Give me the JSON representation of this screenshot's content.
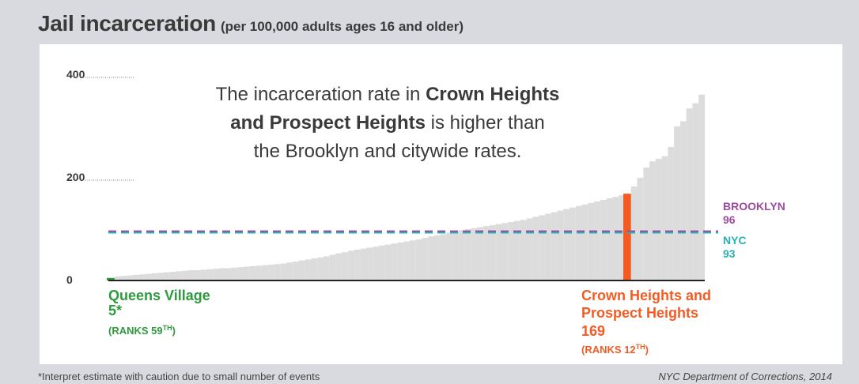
{
  "header": {
    "title": "Jail incarceration",
    "subtitle": "(per 100,000 adults ages 16 and older)"
  },
  "chart_data": {
    "type": "bar",
    "ylim": [
      0,
      400
    ],
    "yticks": [
      "400",
      "200",
      "0"
    ],
    "ytick_values": [
      400,
      200,
      0
    ],
    "values": [
      5,
      8,
      9,
      10,
      11,
      12,
      13,
      14,
      15,
      16,
      17,
      18,
      19,
      20,
      20,
      21,
      22,
      23,
      24,
      24,
      25,
      26,
      27,
      28,
      29,
      30,
      31,
      32,
      33,
      35,
      37,
      39,
      41,
      43,
      45,
      47,
      50,
      53,
      55,
      58,
      60,
      62,
      64,
      66,
      68,
      70,
      72,
      74,
      76,
      78,
      80,
      83,
      86,
      88,
      90,
      93,
      96,
      98,
      100,
      102,
      104,
      106,
      108,
      110,
      112,
      114,
      116,
      118,
      121,
      124,
      127,
      130,
      133,
      136,
      139,
      142,
      145,
      148,
      151,
      154,
      157,
      160,
      163,
      166,
      169,
      183,
      200,
      220,
      232,
      237,
      242,
      260,
      300,
      310,
      335,
      345,
      362
    ],
    "highlights": [
      {
        "index": 0,
        "name": "Queens Village",
        "value": 5,
        "value_label": "5*",
        "rank_label": "(RANKS 59",
        "rank_sup": "TH",
        "rank_close": ")",
        "color": "#2e9a3e"
      },
      {
        "index": 84,
        "name": "Crown Heights and",
        "name2": "Prospect Heights",
        "value": 169,
        "value_label": "169",
        "rank_label": "(RANKS 12",
        "rank_sup": "TH",
        "rank_close": ")",
        "color": "#f25c24"
      }
    ],
    "reference_lines": [
      {
        "name": "BROOKLYN",
        "value": 96,
        "value_label": "96",
        "color": "#9c4a9f"
      },
      {
        "name": "NYC",
        "value": 93,
        "value_label": "93",
        "color": "#27b0b8"
      }
    ],
    "bar_color": "#dcdcdc",
    "annotation": {
      "line1_pre": "The incarceration rate in ",
      "line1_bold": "Crown Heights",
      "line2_bold": "and Prospect Heights",
      "line2_post": " is higher than",
      "line3": "the Brooklyn and citywide rates."
    }
  },
  "footer": {
    "footnote": "*Interpret estimate with caution due to small number of events",
    "source": "NYC Department of Corrections, 2014"
  }
}
